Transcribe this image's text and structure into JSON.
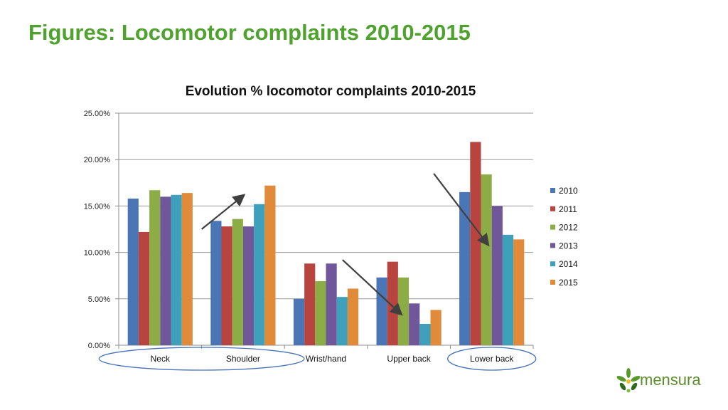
{
  "slide": {
    "title": "Figures: Locomotor complaints 2010-2015"
  },
  "chart_data": {
    "type": "bar",
    "title": "Evolution % locomotor complaints 2010-2015",
    "categories": [
      "Neck",
      "Shoulder",
      "Wrist/hand",
      "Upper back",
      "Lower back"
    ],
    "series": [
      {
        "name": "2010",
        "color": "#4a76b5",
        "values": [
          15.8,
          13.4,
          5.0,
          7.3,
          16.5
        ]
      },
      {
        "name": "2011",
        "color": "#b84440",
        "values": [
          12.2,
          12.8,
          8.8,
          9.0,
          21.9
        ]
      },
      {
        "name": "2012",
        "color": "#8cad45",
        "values": [
          16.7,
          13.6,
          6.9,
          7.3,
          18.4
        ]
      },
      {
        "name": "2013",
        "color": "#6f579a",
        "values": [
          16.0,
          12.8,
          8.8,
          4.5,
          15.0
        ]
      },
      {
        "name": "2014",
        "color": "#3ea0ba",
        "values": [
          16.2,
          15.2,
          5.2,
          2.3,
          11.9
        ]
      },
      {
        "name": "2015",
        "color": "#e08a3a",
        "values": [
          16.4,
          17.2,
          6.1,
          3.8,
          11.4
        ]
      }
    ],
    "ylim": [
      0,
      25
    ],
    "yticks": [
      "0.00%",
      "5.00%",
      "10.00%",
      "15.00%",
      "20.00%",
      "25.00%"
    ],
    "gridlines": true,
    "legend_position": "right",
    "annotations": [
      {
        "type": "arrow",
        "from": [
          1,
          12.5
        ],
        "to": [
          1.5,
          16.1
        ]
      },
      {
        "type": "arrow",
        "from": [
          2.7,
          9.2
        ],
        "to": [
          3.4,
          3.4
        ]
      },
      {
        "type": "arrow",
        "from": [
          3.8,
          18.5
        ],
        "to": [
          4.45,
          10.9
        ]
      }
    ],
    "highlighted_categories": [
      "Neck",
      "Shoulder",
      "Lower back"
    ]
  },
  "logo": {
    "text": "mensura"
  }
}
